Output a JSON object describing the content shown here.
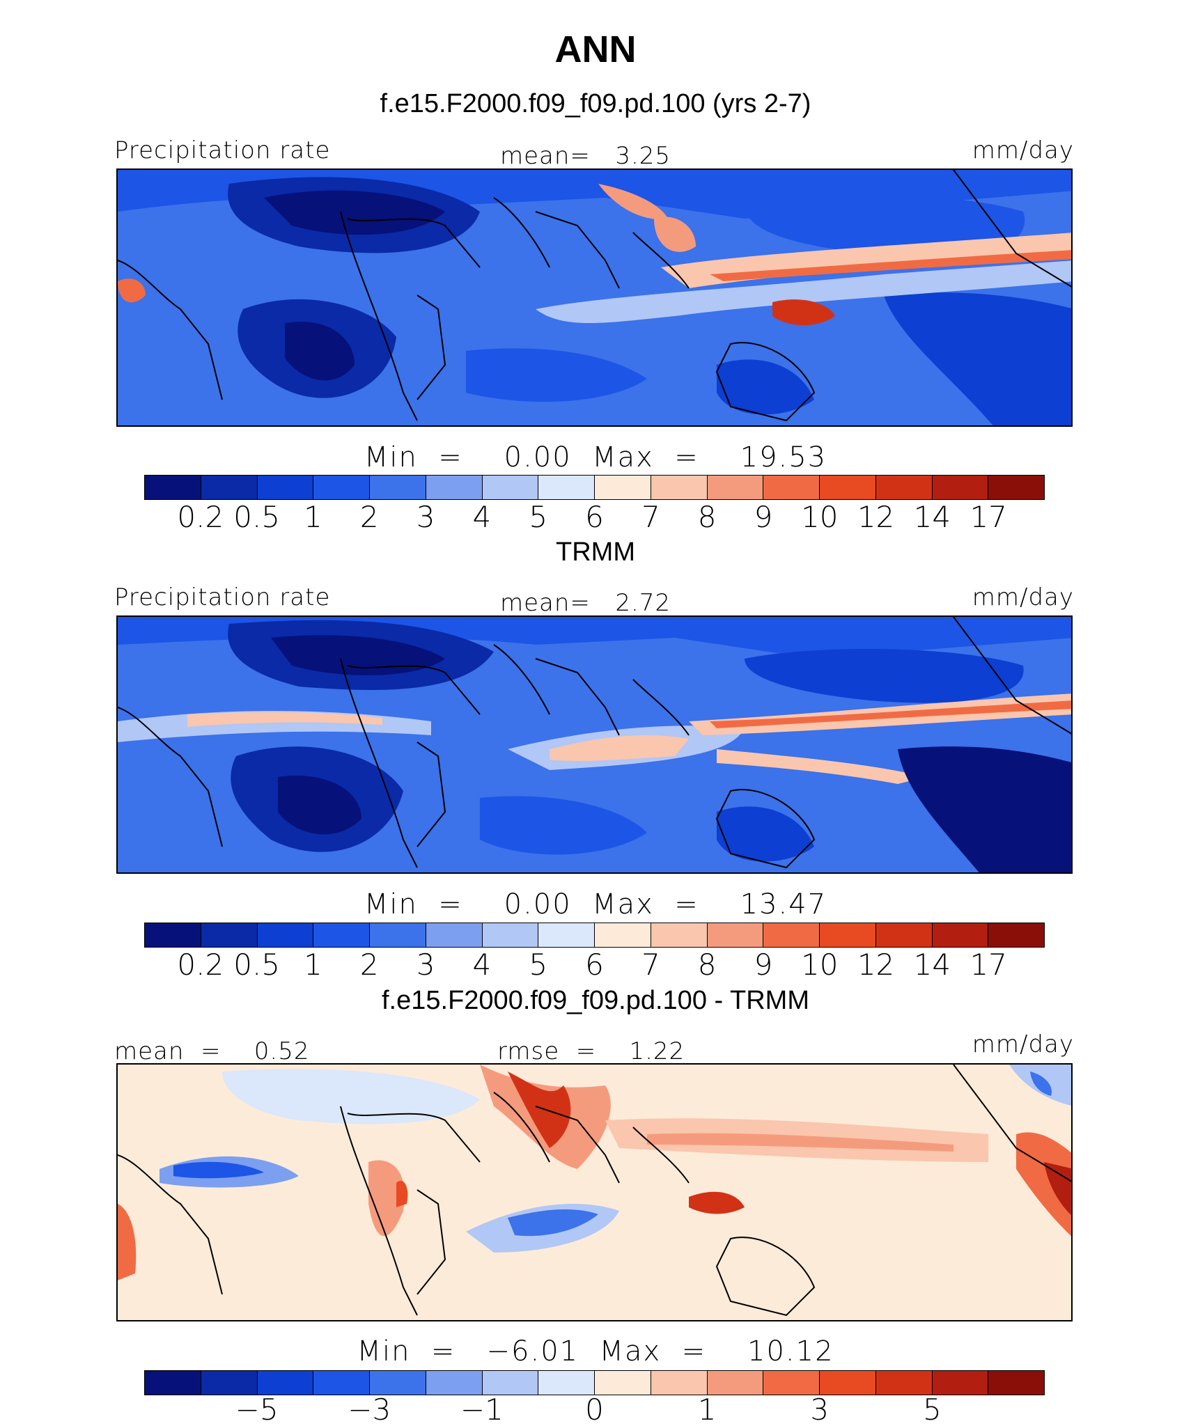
{
  "title": "ANN",
  "panels": [
    {
      "id": "model",
      "subtitle": "f.e15.F2000.f09_f09.pd.100 (yrs 2-7)",
      "left_label": "Precipitation rate",
      "center_label": "mean=   3.25",
      "right_label": "mm/day",
      "minmax": "Min  =    0.00  Max  =    19.53",
      "colorbar_ticks": [
        "0.2",
        "0.5",
        "1",
        "2",
        "3",
        "4",
        "5",
        "6",
        "7",
        "8",
        "9",
        "10",
        "12",
        "14",
        "17"
      ]
    },
    {
      "id": "obs",
      "subtitle": "TRMM",
      "left_label": "Precipitation rate",
      "center_label": "mean=   2.72",
      "right_label": "mm/day",
      "minmax": "Min  =    0.00  Max  =    13.47",
      "colorbar_ticks": [
        "0.2",
        "0.5",
        "1",
        "2",
        "3",
        "4",
        "5",
        "6",
        "7",
        "8",
        "9",
        "10",
        "12",
        "14",
        "17"
      ]
    },
    {
      "id": "diff",
      "subtitle": "f.e15.F2000.f09_f09.pd.100 - TRMM",
      "left_label": "mean  =    0.52",
      "center_label": "rmse  =    1.22",
      "right_label": "mm/day",
      "minmax": "Min  =   −6.01  Max  =    10.12",
      "colorbar_ticks": [
        "−5",
        "−3",
        "−1",
        "0",
        "1",
        "3",
        "5"
      ]
    }
  ],
  "colors": {
    "colorbar": [
      "#07117a",
      "#0a2aa8",
      "#0c3fd2",
      "#1d55e6",
      "#3c72ea",
      "#7c9ff0",
      "#b1c7f5",
      "#dbe7fa",
      "#fdebd9",
      "#fac6ae",
      "#f59b7d",
      "#f06b44",
      "#e84b22",
      "#d13216",
      "#b21f10",
      "#8a0f08"
    ]
  }
}
